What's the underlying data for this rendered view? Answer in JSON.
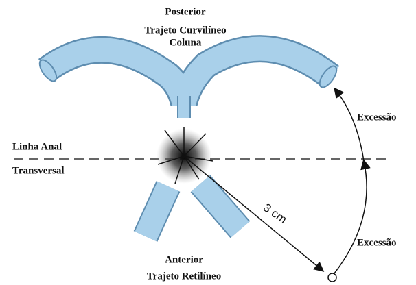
{
  "labels": {
    "posterior": "Posterior",
    "curved_path": "Trajeto Curvilíneo",
    "column": "Coluna",
    "exception_top": "Excessão",
    "anal_line": "Linha Anal",
    "transverse": "Transversal",
    "distance": "3 cm",
    "exception_bottom": "Excessão",
    "anterior": "Anterior",
    "straight_path": "Trajeto Retilíneo"
  }
}
